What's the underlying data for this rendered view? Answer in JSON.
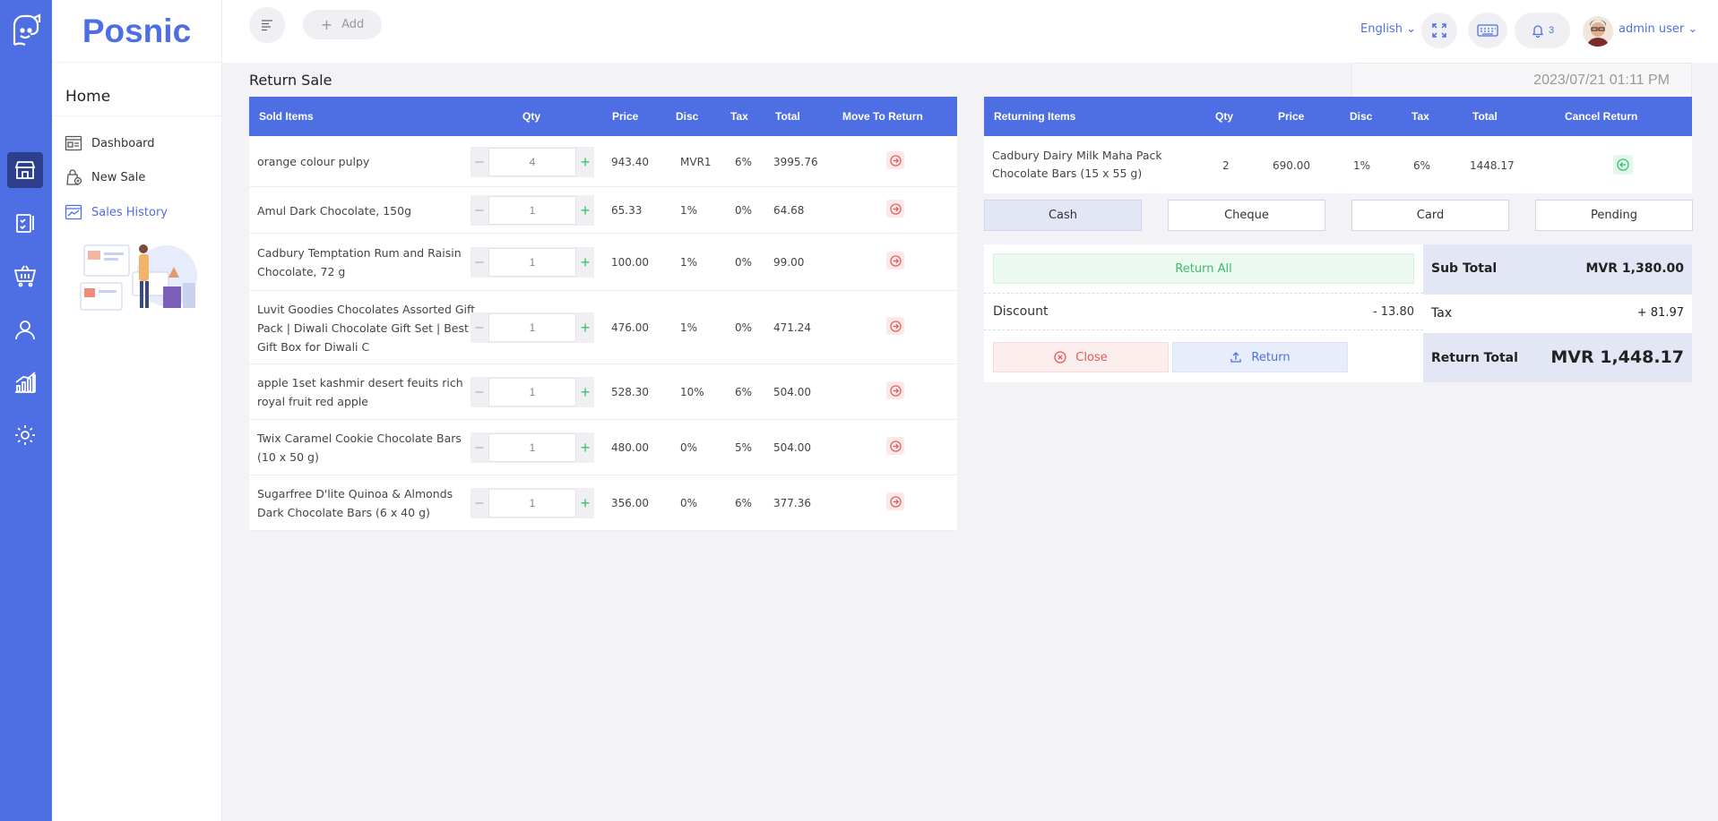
{
  "brand": "Posnic",
  "menu": {
    "home": "Home",
    "items": [
      {
        "label": "Dashboard"
      },
      {
        "label": "New Sale"
      },
      {
        "label": "Sales History"
      }
    ]
  },
  "topbar": {
    "add_label": "Add",
    "language": "English",
    "notification_count": "3",
    "user_name": "admin user"
  },
  "page": {
    "title": "Return Sale",
    "datetime": "2023/07/21 01:11 PM"
  },
  "sold_table": {
    "headers": [
      "Sold Items",
      "Qty",
      "Price",
      "Disc",
      "Tax",
      "Total",
      "Move To Return"
    ],
    "rows": [
      {
        "name_lines": [
          "orange colour pulpy"
        ],
        "qty": "4",
        "price": "943.40",
        "disc": "MVR1",
        "tax": "6%",
        "total": "3995.76"
      },
      {
        "name_lines": [
          "Amul Dark Chocolate, 150g"
        ],
        "qty": "1",
        "price": "65.33",
        "disc": "1%",
        "tax": "0%",
        "total": "64.68"
      },
      {
        "name_lines": [
          "Cadbury Temptation Rum and Raisin",
          "Chocolate, 72 g"
        ],
        "qty": "1",
        "price": "100.00",
        "disc": "1%",
        "tax": "0%",
        "total": "99.00"
      },
      {
        "name_lines": [
          "Luvit Goodies Chocolates Assorted Gift",
          "Pack | Diwali Chocolate Gift Set | Best",
          "Gift Box for Diwali C"
        ],
        "qty": "1",
        "price": "476.00",
        "disc": "1%",
        "tax": "0%",
        "total": "471.24"
      },
      {
        "name_lines": [
          "apple 1set kashmir desert feuits rich",
          "royal fruit red apple"
        ],
        "qty": "1",
        "price": "528.30",
        "disc": "10%",
        "tax": "6%",
        "total": "504.00"
      },
      {
        "name_lines": [
          "Twix Caramel Cookie Chocolate Bars",
          "(10 x 50 g)"
        ],
        "qty": "1",
        "price": "480.00",
        "disc": "0%",
        "tax": "5%",
        "total": "504.00"
      },
      {
        "name_lines": [
          "Sugarfree D'lite Quinoa & Almonds",
          "Dark Chocolate Bars (6 x 40 g)"
        ],
        "qty": "1",
        "price": "356.00",
        "disc": "0%",
        "tax": "6%",
        "total": "377.36"
      }
    ]
  },
  "return_table": {
    "headers": [
      "Returning Items",
      "Qty",
      "Price",
      "Disc",
      "Tax",
      "Total",
      "Cancel Return"
    ],
    "rows": [
      {
        "name_lines": [
          "Cadbury Dairy Milk Maha Pack",
          "Chocolate Bars (15 x 55 g)"
        ],
        "qty": "2",
        "price": "690.00",
        "disc": "1%",
        "tax": "6%",
        "total": "1448.17"
      }
    ]
  },
  "payment_methods": [
    "Cash",
    "Cheque",
    "Card",
    "Pending"
  ],
  "payment_selected": "Cash",
  "summary": {
    "return_all": "Return All",
    "discount_label": "Discount",
    "discount_value": "- 13.80",
    "close_label": "Close",
    "return_label": "Return",
    "sub_total_label": "Sub Total",
    "sub_total_value": "MVR 1,380.00",
    "tax_label": "Tax",
    "tax_value": "+ 81.97",
    "return_total_label": "Return Total",
    "return_total_value": "MVR 1,448.17"
  },
  "colors": {
    "primary": "#4e6fe3",
    "rail_active": "#2c3e8c",
    "success": "#37c26c",
    "danger": "#e05a5a"
  }
}
